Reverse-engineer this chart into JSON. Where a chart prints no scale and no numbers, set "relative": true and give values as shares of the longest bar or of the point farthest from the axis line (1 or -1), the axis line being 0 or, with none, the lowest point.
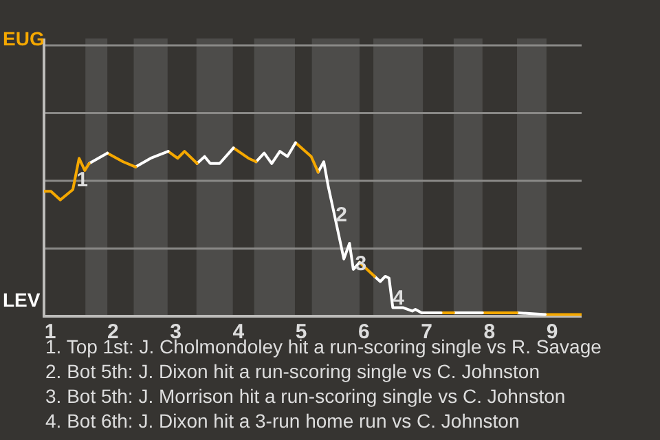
{
  "chart_data": {
    "type": "line",
    "series": [
      {
        "color": "#f5a800",
        "x": [
          0.9,
          1.01,
          1.16,
          1.36,
          1.46,
          1.55,
          1.62
        ],
        "values": [
          0.72,
          0.72,
          0.67,
          0.73,
          0.91,
          0.84,
          0.88
        ]
      },
      {
        "color": "#ffffff",
        "x": [
          1.62,
          1.91
        ],
        "values": [
          0.88,
          0.94
        ]
      },
      {
        "color": "#f5a800",
        "x": [
          1.91,
          2.16,
          2.36
        ],
        "values": [
          0.94,
          0.89,
          0.86
        ]
      },
      {
        "color": "#ffffff",
        "x": [
          2.36,
          2.6,
          2.88
        ],
        "values": [
          0.86,
          0.91,
          0.95
        ]
      },
      {
        "color": "#f5a800",
        "x": [
          2.88,
          3.03,
          3.14,
          3.34
        ],
        "values": [
          0.95,
          0.91,
          0.95,
          0.88
        ]
      },
      {
        "color": "#ffffff",
        "x": [
          3.34,
          3.46,
          3.55,
          3.7,
          3.92
        ],
        "values": [
          0.88,
          0.92,
          0.88,
          0.88,
          0.97
        ]
      },
      {
        "color": "#f5a800",
        "x": [
          3.92,
          4.16,
          4.28
        ],
        "values": [
          0.97,
          0.91,
          0.89
        ]
      },
      {
        "color": "#ffffff",
        "x": [
          4.28,
          4.41,
          4.53,
          4.66,
          4.78,
          4.91
        ],
        "values": [
          0.89,
          0.94,
          0.88,
          0.95,
          0.92,
          1
        ]
      },
      {
        "color": "#f5a800",
        "x": [
          4.91,
          5.16,
          5.27
        ],
        "values": [
          1,
          0.92,
          0.83
        ]
      },
      {
        "color": "#ffffff",
        "x": [
          5.27,
          5.36,
          5.43,
          5.55,
          5.68,
          5.77,
          5.83,
          5.93
        ],
        "values": [
          0.83,
          0.89,
          0.75,
          0.55,
          0.33,
          0.42,
          0.27,
          0.31
        ]
      },
      {
        "color": "#f5a800",
        "x": [
          5.93,
          6.17
        ],
        "values": [
          0.31,
          0.23
        ]
      },
      {
        "color": "#ffffff",
        "x": [
          6.17,
          6.26,
          6.34,
          6.4,
          6.46,
          6.62,
          6.77,
          6.82,
          6.92,
          7.23
        ],
        "values": [
          0.23,
          0.2,
          0.23,
          0.22,
          0.05,
          0.05,
          0.03,
          0.04,
          0.02,
          0.02
        ]
      },
      {
        "color": "#f5a800",
        "x": [
          7.23,
          7.43
        ],
        "values": [
          0.02,
          0.02
        ]
      },
      {
        "color": "#ffffff",
        "x": [
          7.43,
          7.89
        ],
        "values": [
          0.02,
          0.02
        ]
      },
      {
        "color": "#f5a800",
        "x": [
          7.89,
          8.44
        ],
        "values": [
          0.02,
          0.02
        ]
      },
      {
        "color": "#ffffff",
        "x": [
          8.44,
          8.89
        ],
        "values": [
          0.02,
          0.01
        ]
      },
      {
        "color": "#f5a800",
        "x": [
          8.89,
          9.47
        ],
        "values": [
          0.01,
          0.01
        ]
      }
    ],
    "relative": true,
    "xlim": [
      0.9,
      9.47
    ],
    "xticks": [
      1,
      2,
      3,
      4,
      5,
      6,
      7,
      8,
      9
    ],
    "ref_lines": [
      {
        "axis": "y",
        "value": 0.39,
        "color": "#8a8987"
      },
      {
        "axis": "y",
        "value": 0.78,
        "color": "#8a8987"
      },
      {
        "axis": "y",
        "value": 1.17,
        "color": "#8a8987"
      },
      {
        "axis": "y",
        "value": 1.56,
        "color": "#8a8987"
      }
    ],
    "marker": "none",
    "bands": [
      {
        "axis": "x",
        "from": 1.56,
        "to": 1.91,
        "color": "#4d4c4a"
      },
      {
        "axis": "x",
        "from": 2.33,
        "to": 2.87,
        "color": "#4d4c4a"
      },
      {
        "axis": "x",
        "from": 3.33,
        "to": 3.91,
        "color": "#4d4c4a"
      },
      {
        "axis": "x",
        "from": 4.25,
        "to": 4.9,
        "color": "#4d4c4a"
      },
      {
        "axis": "x",
        "from": 5.17,
        "to": 5.93,
        "color": "#4d4c4a"
      },
      {
        "axis": "x",
        "from": 6.15,
        "to": 6.94,
        "color": "#4d4c4a"
      },
      {
        "axis": "x",
        "from": 7.43,
        "to": 7.89,
        "color": "#4d4c4a"
      },
      {
        "axis": "x",
        "from": 8.44,
        "to": 8.91,
        "color": "#4d4c4a"
      }
    ],
    "annotations": [
      "EUG",
      "LEV",
      {
        "text": "1",
        "x": 1.51,
        "y": 0.78
      },
      {
        "text": "2",
        "x": 5.64,
        "y": 0.58
      },
      {
        "text": "3",
        "x": 5.95,
        "y": 0.3
      },
      {
        "text": "4",
        "x": 6.55,
        "y": 0.1
      },
      "1. Top 1st: J. Cholmondoley hit a run-scoring single vs R. Savage",
      "2. Bot 5th: J. Dixon hit a run-scoring single vs C. Johnston",
      "3. Bot 5th: J. Morrison hit a run-scoring single vs C. Johnston",
      "4. Bot 6th: J. Dixon hit a 3-run home run vs C. Johnston"
    ]
  }
}
